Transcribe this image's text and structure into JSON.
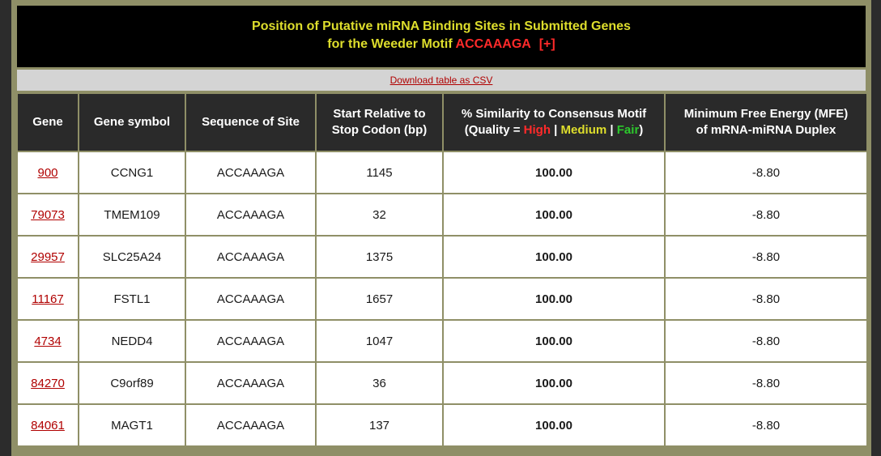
{
  "header": {
    "line1": "Position of Putative miRNA Binding Sites in Submitted Genes",
    "line2_prefix": "for the Weeder Motif",
    "motif": "ACCAAAGA",
    "expand": "[+]"
  },
  "csv_link": "Download table as CSV",
  "columns": {
    "gene": "Gene",
    "symbol": "Gene symbol",
    "sequence": "Sequence of Site",
    "start_l1": "Start Relative to",
    "start_l2": "Stop Codon (bp)",
    "sim_l1": "% Similarity to Consensus Motif",
    "sim_l2_prefix": "(Quality =",
    "sim_high": "High",
    "sim_medium": "Medium",
    "sim_fair": "Fair",
    "sim_sep": "|",
    "sim_close": ")",
    "mfe_l1": "Minimum Free Energy (MFE)",
    "mfe_l2": "of mRNA-miRNA Duplex"
  },
  "rows": [
    {
      "gene": "900",
      "symbol": "CCNG1",
      "sequence": "ACCAAAGA",
      "start": "1145",
      "similarity": "100.00",
      "mfe": "-8.80"
    },
    {
      "gene": "79073",
      "symbol": "TMEM109",
      "sequence": "ACCAAAGA",
      "start": "32",
      "similarity": "100.00",
      "mfe": "-8.80"
    },
    {
      "gene": "29957",
      "symbol": "SLC25A24",
      "sequence": "ACCAAAGA",
      "start": "1375",
      "similarity": "100.00",
      "mfe": "-8.80"
    },
    {
      "gene": "11167",
      "symbol": "FSTL1",
      "sequence": "ACCAAAGA",
      "start": "1657",
      "similarity": "100.00",
      "mfe": "-8.80"
    },
    {
      "gene": "4734",
      "symbol": "NEDD4",
      "sequence": "ACCAAAGA",
      "start": "1047",
      "similarity": "100.00",
      "mfe": "-8.80"
    },
    {
      "gene": "84270",
      "symbol": "C9orf89",
      "sequence": "ACCAAAGA",
      "start": "36",
      "similarity": "100.00",
      "mfe": "-8.80"
    },
    {
      "gene": "84061",
      "symbol": "MAGT1",
      "sequence": "ACCAAAGA",
      "start": "137",
      "similarity": "100.00",
      "mfe": "-8.80"
    }
  ]
}
